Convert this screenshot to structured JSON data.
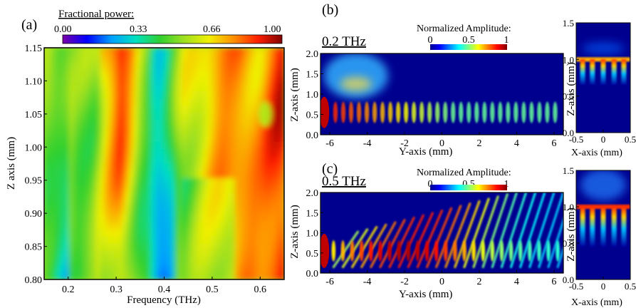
{
  "colors": {
    "jet_stops": [
      "#00008f",
      "#0000ff",
      "#0080ff",
      "#00ffff",
      "#80ff80",
      "#ffff00",
      "#ff8000",
      "#ff0000",
      "#800000"
    ],
    "rainbow_stops": [
      "#7a00a8",
      "#0000ff",
      "#00a0ff",
      "#00e0c0",
      "#30d030",
      "#a0e020",
      "#f0f000",
      "#ff9000",
      "#ff2000",
      "#800000"
    ]
  },
  "chart_data": [
    {
      "panel": "(a)",
      "type": "heatmap",
      "colorbar_title": "Fractional power:",
      "colorbar_ticks": [
        "0.00",
        "0.33",
        "0.66",
        "1.00"
      ],
      "colorbar_range": [
        0,
        1
      ],
      "xlabel": "Frequency (THz)",
      "ylabel": "Z axis (mm)",
      "xlim": [
        0.15,
        0.65
      ],
      "ylim": [
        0.8,
        1.15
      ],
      "xticks": [
        "0.2",
        "0.3",
        "0.4",
        "0.5",
        "0.6"
      ],
      "yticks": [
        "0.80",
        "0.85",
        "0.90",
        "0.95",
        "1.00",
        "1.05",
        "1.10",
        "1.15"
      ],
      "columns_fractional_power": [
        {
          "x": 0.16,
          "value": 0.62
        },
        {
          "x": 0.18,
          "value": 0.55
        },
        {
          "x": 0.2,
          "value": 0.52
        },
        {
          "x": 0.22,
          "value": 0.48
        },
        {
          "x": 0.25,
          "value": 0.52
        },
        {
          "x": 0.28,
          "value": 0.66
        },
        {
          "x": 0.31,
          "value": 0.78
        },
        {
          "x": 0.33,
          "value": 0.66
        },
        {
          "x": 0.35,
          "value": 0.5
        },
        {
          "x": 0.37,
          "value": 0.42
        },
        {
          "x": 0.39,
          "value": 0.3
        },
        {
          "x": 0.41,
          "value": 0.36
        },
        {
          "x": 0.44,
          "value": 0.6
        },
        {
          "x": 0.48,
          "value": 0.68
        },
        {
          "x": 0.52,
          "value": 0.76
        },
        {
          "x": 0.56,
          "value": 0.78
        },
        {
          "x": 0.6,
          "value": 0.76
        },
        {
          "x": 0.64,
          "value": 0.88
        }
      ]
    },
    {
      "panel": "(b)",
      "type": "heatmap",
      "frequency_label": "0.2 THz",
      "colorbar_title": "Normalized Amplitude:",
      "colorbar_ticks": [
        "0",
        "0.5",
        "1"
      ],
      "xlabel": "Y-axis (mm)",
      "ylabel": "Z-axis (mm)",
      "xlim": [
        -6.5,
        6.5
      ],
      "ylim": [
        0,
        2.0
      ],
      "xticks": [
        "-6",
        "-4",
        "-2",
        "0",
        "2",
        "4",
        "6"
      ],
      "yticks": [
        "0.0",
        "0.5",
        "1.0",
        "1.5",
        "2.0"
      ],
      "peak_amplitude_y": -5
    },
    {
      "panel": "(b) side",
      "type": "heatmap",
      "xlabel": "X-axis (mm)",
      "ylabel": "Z-axis (mm)",
      "xlim": [
        -0.5,
        0.5
      ],
      "ylim": [
        0,
        1.5
      ],
      "xticks": [
        "-0.5",
        "0",
        "0.5"
      ],
      "yticks": [
        "0.0",
        "0.5",
        "1.0",
        "1.5"
      ]
    },
    {
      "panel": "(c)",
      "type": "heatmap",
      "frequency_label": "0.5 THz",
      "colorbar_title": "Normalized Amplitude:",
      "colorbar_ticks": [
        "0",
        "0.5",
        "1"
      ],
      "xlabel": "Y-axis (mm)",
      "ylabel": "Z-axis (mm)",
      "xlim": [
        -6.5,
        6.5
      ],
      "ylim": [
        0,
        2.0
      ],
      "xticks": [
        "-6",
        "-4",
        "-2",
        "0",
        "2",
        "4",
        "6"
      ],
      "yticks": [
        "0.0",
        "0.5",
        "1.0",
        "1.5",
        "2.0"
      ]
    },
    {
      "panel": "(c) side",
      "type": "heatmap",
      "xlabel": "X-axis (mm)",
      "ylabel": "Z-axis (mm)",
      "xlim": [
        -0.5,
        0.5
      ],
      "ylim": [
        0,
        1.5
      ],
      "xticks": [
        "-0.5",
        "0",
        "0.5"
      ],
      "yticks": [
        "0.0",
        "0.5",
        "1.0",
        "1.5"
      ]
    }
  ]
}
